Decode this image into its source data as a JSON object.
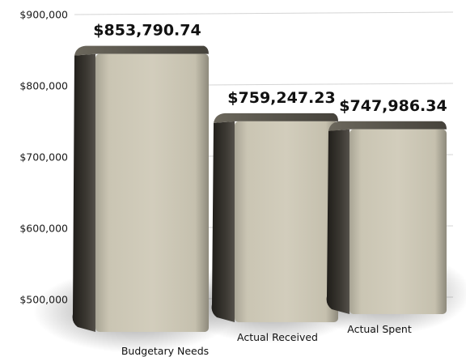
{
  "chart_data": {
    "type": "bar",
    "categories": [
      "Budgetary Needs",
      "Actual Received",
      "Actual Spent"
    ],
    "values": [
      853790.74,
      759247.23,
      747986.34
    ],
    "value_labels": [
      "$853,790.74",
      "$759,247.23",
      "$747,986.34"
    ],
    "y_ticks": [
      500000,
      600000,
      700000,
      800000,
      900000
    ],
    "y_tick_labels": [
      "$500,000",
      "$600,000",
      "$700,000",
      "$800,000",
      "$900,000"
    ],
    "ylim": [
      450000,
      900000
    ],
    "grid": true,
    "style": "3d-bars",
    "colors": {
      "bar_face": "#cfcab9",
      "bar_side": "#3d3a33",
      "grid": "#d4d4d4"
    }
  }
}
